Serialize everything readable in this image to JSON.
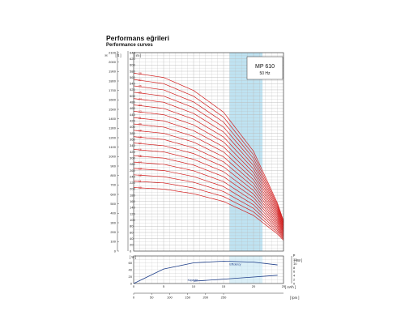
{
  "title": "Performans eğrileri",
  "subtitle": "Performance curves",
  "chart_data": [
    {
      "type": "line",
      "model": "MP 610",
      "frequency": "50 Hz",
      "axis_labels": {
        "left_outer": "H",
        "left_outer_unit": "[ ft ]",
        "left_inner_unit": "[ m ]"
      },
      "x_flow_m3h_range": [
        0,
        25
      ],
      "y_ft": {
        "range": [
          0,
          2100
        ],
        "ticks": [
          0,
          100,
          200,
          300,
          400,
          500,
          600,
          700,
          800,
          900,
          1000,
          1100,
          1200,
          1300,
          1400,
          1500,
          1600,
          1700,
          1800,
          1900,
          2000,
          2100
        ]
      },
      "y_m": {
        "range": [
          0,
          640
        ],
        "ticks": [
          0,
          20,
          40,
          60,
          80,
          100,
          120,
          140,
          160,
          180,
          200,
          220,
          240,
          260,
          280,
          300,
          320,
          340,
          360,
          380,
          400,
          420,
          440,
          460,
          480,
          500,
          520,
          540,
          560,
          580,
          600,
          620,
          640
        ]
      },
      "optimum_range_m3h": [
        16,
        21.5
      ],
      "stage_labels": [
        "28",
        "27",
        "26",
        "25",
        "24",
        "23",
        "22",
        "21",
        "20",
        "19",
        "18",
        "17",
        "16",
        "15",
        "14",
        "13",
        "12",
        "11",
        "10"
      ],
      "stages": [
        28,
        27,
        26,
        25,
        24,
        23,
        22,
        21,
        20,
        19,
        18,
        17,
        16,
        15,
        14,
        13,
        12,
        11,
        10
      ],
      "head_per_stage_m": {
        "flow_m3h": [
          0,
          5,
          10,
          15,
          20,
          24,
          25
        ],
        "head_m": [
          20.5,
          20.0,
          18.5,
          16.0,
          11.5,
          5.5,
          3.5
        ]
      },
      "curve_color": "#d41f1f",
      "band_color": "#bfe3f2"
    },
    {
      "type": "line",
      "title": "Efficiency / Power",
      "left_unit": "[ % ]",
      "right_axis_label": "P",
      "right_unit": "[ kW ]",
      "y_left_ticks": [
        0,
        20,
        40,
        60
      ],
      "y_right_ticks": [
        0,
        2,
        4,
        6,
        8,
        10,
        12
      ],
      "series": [
        {
          "name": "Efficiency",
          "x": [
            0,
            5,
            10,
            15,
            20,
            24
          ],
          "y": [
            0,
            42,
            60,
            65,
            62,
            54
          ]
        },
        {
          "name": "Kapasite",
          "x": [
            10,
            15,
            20,
            24
          ],
          "y": [
            1.2,
            2.2,
            3.3,
            4.2
          ]
        }
      ],
      "flow_ticks_m3h": [
        0,
        5,
        10,
        15,
        20,
        25
      ],
      "flow_unit": "[ m³/h ]"
    },
    {
      "type": "line",
      "flow_ticks_lpm": [
        0,
        50,
        100,
        150,
        200,
        250
      ],
      "flow_unit": "[ lpm ]"
    }
  ]
}
